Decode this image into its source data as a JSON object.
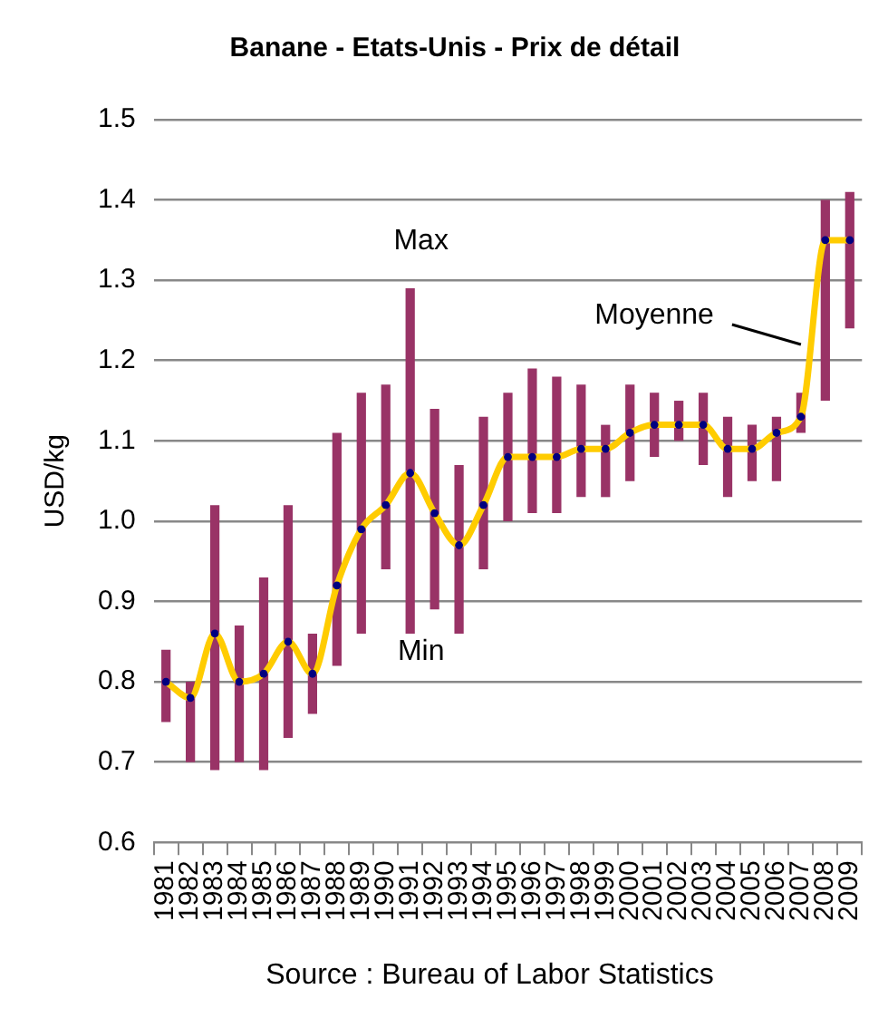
{
  "chart_data": {
    "type": "bar",
    "title": "Banane - Etats-Unis - Prix de détail",
    "ylabel": "USD/kg",
    "categories": [
      "1981",
      "1982",
      "1983",
      "1984",
      "1985",
      "1986",
      "1987",
      "1988",
      "1989",
      "1990",
      "1991",
      "1992",
      "1993",
      "1994",
      "1995",
      "1996",
      "1997",
      "1998",
      "1999",
      "2000",
      "2001",
      "2002",
      "2003",
      "2004",
      "2005",
      "2006",
      "2007",
      "2008",
      "2009"
    ],
    "series": [
      {
        "color": "#993366",
        "base": [
          0.75,
          0.7,
          0.69,
          0.7,
          0.69,
          0.73,
          0.76,
          0.82,
          0.86,
          0.94,
          0.86,
          0.89,
          0.86,
          0.94,
          1.0,
          1.01,
          1.01,
          1.03,
          1.03,
          1.05,
          1.08,
          1.1,
          1.07,
          1.03,
          1.05,
          1.05,
          1.11,
          1.15,
          1.24
        ],
        "values": [
          0.09,
          0.1,
          0.33,
          0.17,
          0.24,
          0.29,
          0.1,
          0.29,
          0.3,
          0.23,
          0.43,
          0.25,
          0.21,
          0.19,
          0.16,
          0.18,
          0.17,
          0.14,
          0.09,
          0.12,
          0.08,
          0.05,
          0.09,
          0.1,
          0.07,
          0.08,
          0.05,
          0.25,
          0.17
        ]
      },
      {
        "type": "line",
        "color": "#ffcc00",
        "marker": "circle",
        "values": [
          0.8,
          0.78,
          0.86,
          0.8,
          0.81,
          0.85,
          0.81,
          0.92,
          0.99,
          1.02,
          1.06,
          1.01,
          0.97,
          1.02,
          1.08,
          1.08,
          1.08,
          1.09,
          1.09,
          1.11,
          1.12,
          1.12,
          1.12,
          1.09,
          1.09,
          1.11,
          1.13,
          1.35,
          1.35
        ]
      }
    ],
    "ylim": [
      0.6,
      1.5
    ],
    "yticks": [
      0.6,
      0.7,
      0.8,
      0.9,
      {
        "value": 1.0,
        "label": "1.0"
      },
      1.1,
      1.2,
      1.3,
      1.4,
      1.5
    ],
    "grid": "y",
    "legend": false,
    "annotations": [
      {
        "text": "Max",
        "x": "1991",
        "y": 1.29
      },
      {
        "text": "Min",
        "x": "1991",
        "y": 0.86
      },
      {
        "text": "Moyenne",
        "x": "2007",
        "y": 1.22
      },
      "Source : Bureau of Labor Statistics"
    ]
  }
}
